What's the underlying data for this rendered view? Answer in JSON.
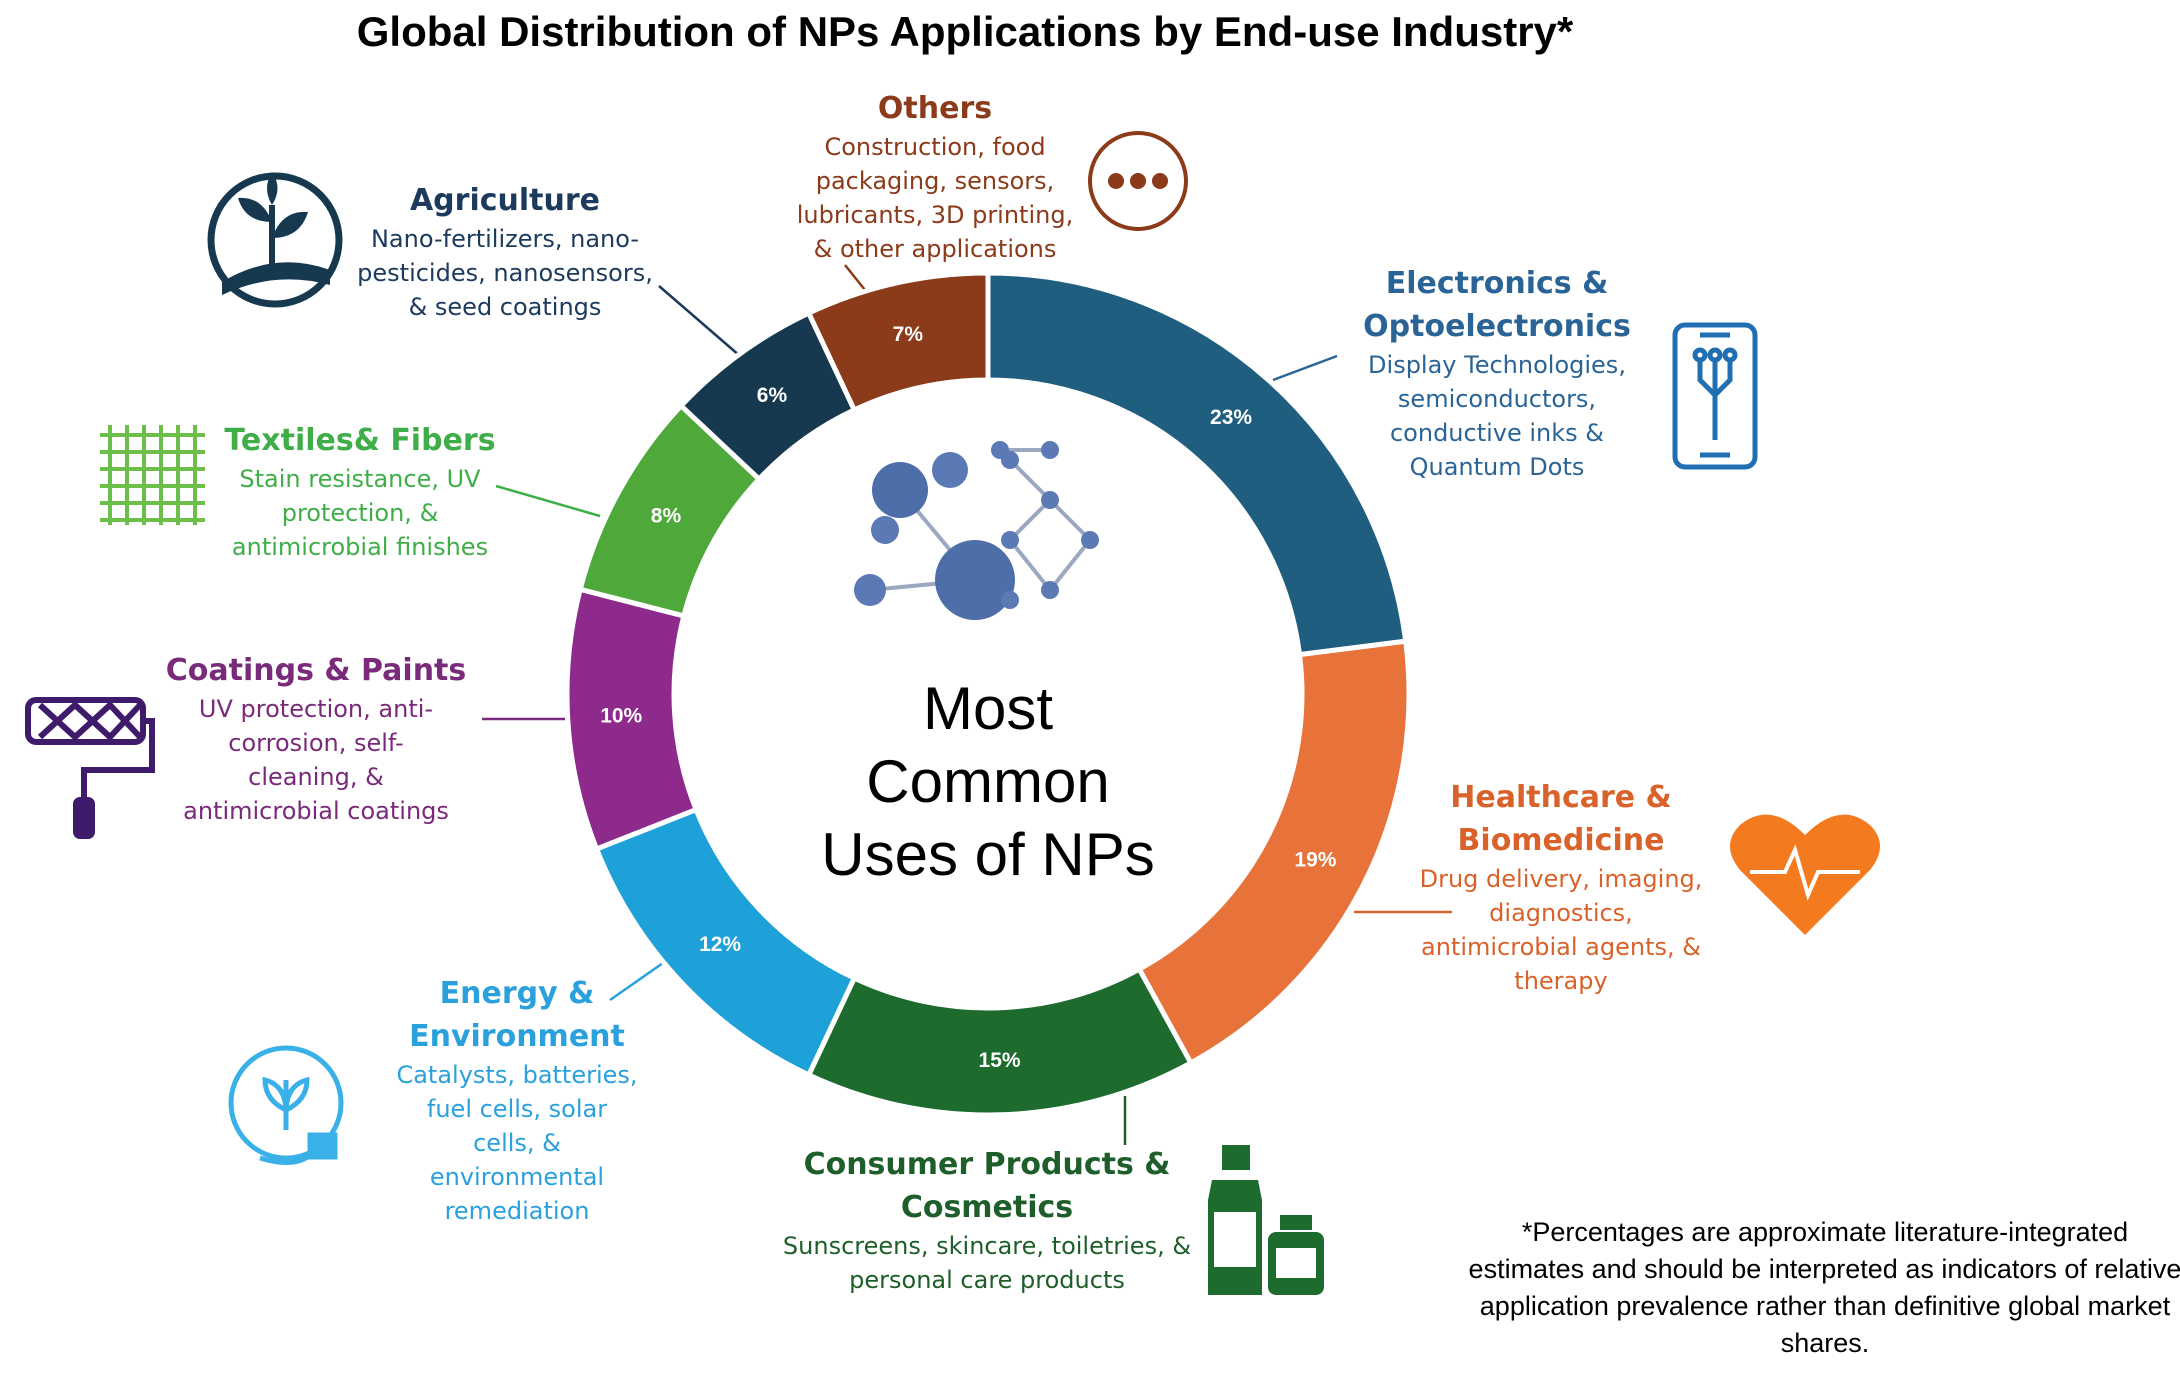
{
  "chart_data": {
    "type": "pie",
    "title": "Global Distribution of NPs Applications by End-use Industry*",
    "center_label": "Most Common Uses of NPs",
    "footnote": "*Percentages are approximate literature-integrated estimates and should be interpreted as indicators of relative application prevalence rather than definitive global market shares.",
    "categories": [
      "Electronics & Optoelectronics",
      "Healthcare & Biomedicine",
      "Consumer Products & Cosmetics",
      "Energy & Environment",
      "Coatings & Paints",
      "Textiles& Fibers",
      "Agriculture",
      "Others"
    ],
    "values": [
      23,
      19,
      15,
      12,
      10,
      8,
      6,
      7
    ],
    "value_labels": [
      "23%",
      "19%",
      "15%",
      "12%",
      "10%",
      "8%",
      "6%",
      "7%"
    ],
    "colors": [
      "#1f5e7e",
      "#e8733a",
      "#1e6b2e",
      "#1ea0d8",
      "#8e2a8c",
      "#4ea83a",
      "#17394f",
      "#8b3a1a"
    ],
    "text_colors": [
      "#2a6496",
      "#d9622b",
      "#1e5e2a",
      "#2aa0dc",
      "#7a2a7a",
      "#3fae49",
      "#1b3a5c",
      "#8b3a1a"
    ],
    "descriptions": [
      [
        "Display Technologies,",
        "semiconductors,",
        "conductive inks &",
        "Quantum Dots"
      ],
      [
        "Drug delivery, imaging,",
        "diagnostics,",
        "antimicrobial agents, &",
        "therapy"
      ],
      [
        "Sunscreens, skincare, toiletries, &",
        "personal care products"
      ],
      [
        "Catalysts, batteries,",
        "fuel cells, solar",
        "cells, &",
        "environmental",
        "remediation"
      ],
      [
        "UV protection, anti-",
        "corrosion, self-",
        "cleaning, &",
        "antimicrobial coatings"
      ],
      [
        "Stain resistance, UV",
        "protection, &",
        "antimicrobial finishes"
      ],
      [
        "Nano-fertilizers, nano-",
        "pesticides, nanosensors,",
        "& seed coatings"
      ],
      [
        "Construction, food",
        "packaging, sensors,",
        "lubricants, 3D printing,",
        "& other applications"
      ]
    ]
  }
}
